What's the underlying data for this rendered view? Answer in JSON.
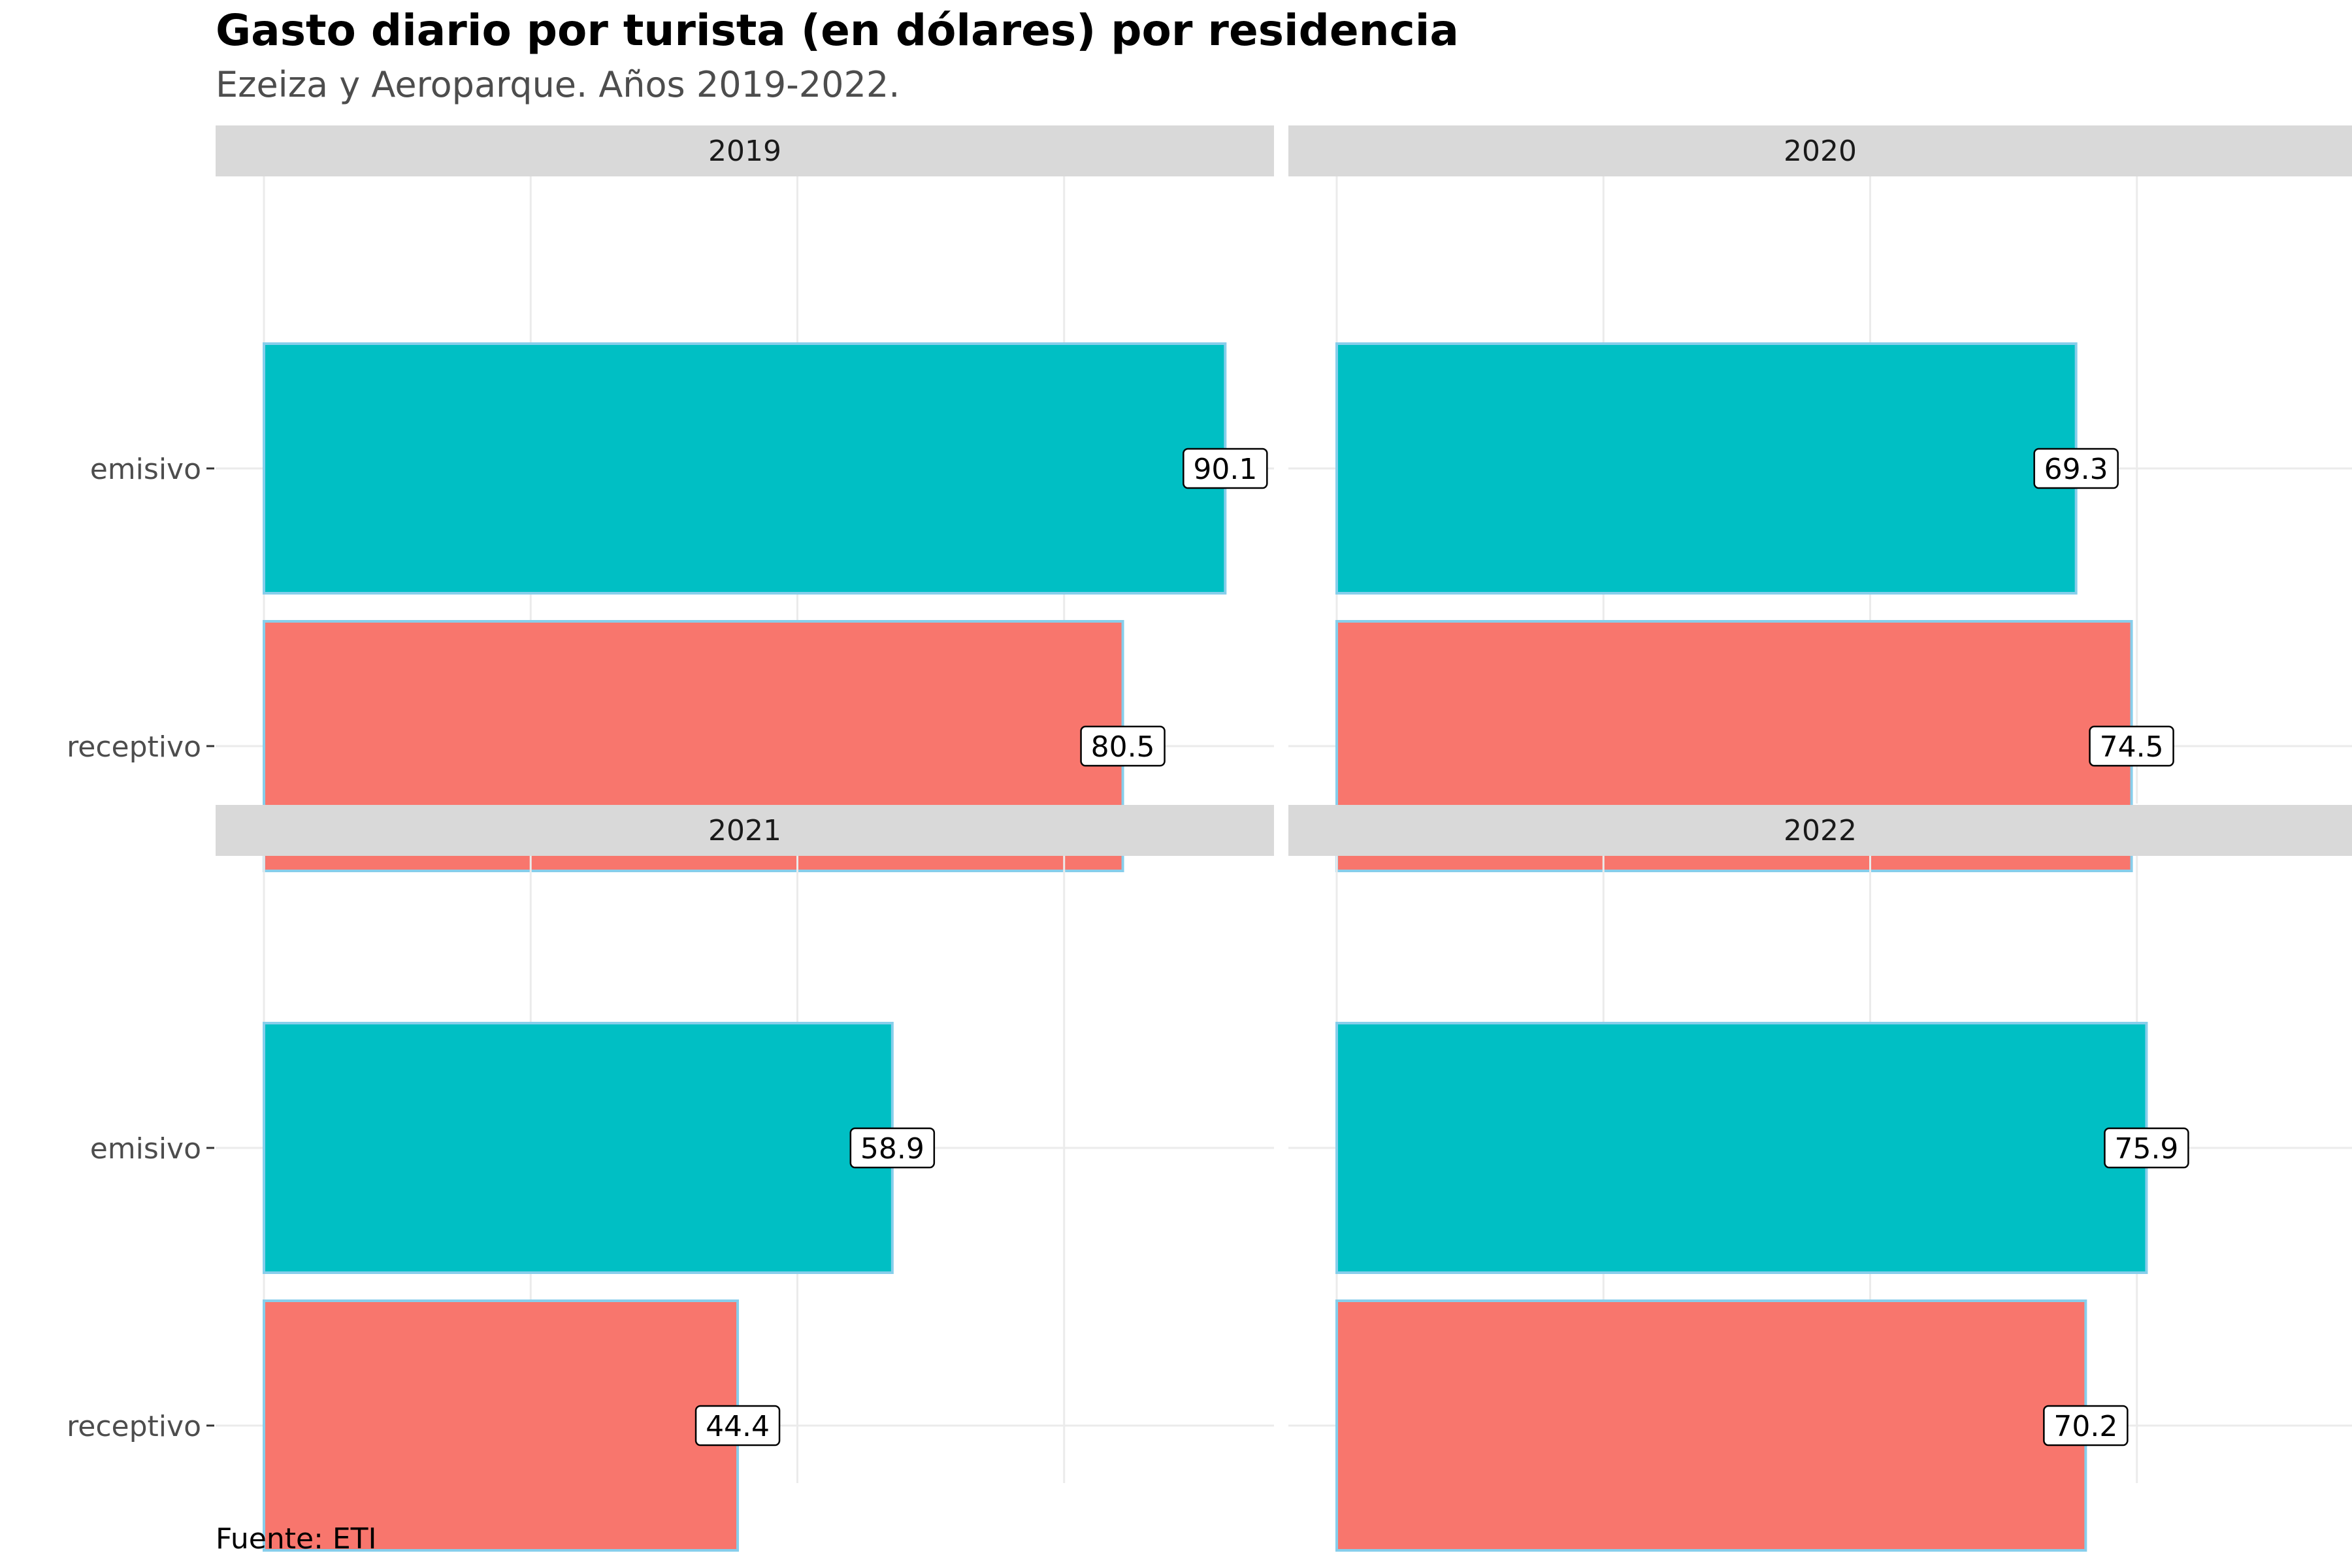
{
  "title": "Gasto diario por turista (en dólares) por residencia",
  "subtitle": "Ezeiza y Aeroparque. Años 2019-2022.",
  "caption": "Fuente: ETI",
  "colors": {
    "emisivo": "#00BFC4",
    "receptivo": "#F8766D",
    "bar_outline": "#87CEEB",
    "strip_bg": "#D9D9D9",
    "grid": "#EBEBEB"
  },
  "chart_data": {
    "type": "bar",
    "orientation": "horizontal",
    "categories": [
      "emisivo",
      "receptivo"
    ],
    "facets": [
      {
        "label": "2019",
        "values": [
          90.1,
          80.5
        ],
        "labels": [
          "90.1",
          "80.5"
        ]
      },
      {
        "label": "2020",
        "values": [
          69.3,
          74.5
        ],
        "labels": [
          "69.3",
          "74.5"
        ]
      },
      {
        "label": "2021",
        "values": [
          58.9,
          44.4
        ],
        "labels": [
          "58.9",
          "44.4"
        ]
      },
      {
        "label": "2022",
        "values": [
          75.9,
          70.2
        ],
        "labels": [
          "75.9",
          "70.2"
        ]
      }
    ],
    "xlim": [
      0,
      93.5
    ],
    "x_gridlines": [
      0,
      25,
      50,
      75
    ],
    "x_tick_labels_shown": false,
    "xlabel": "",
    "ylabel": "",
    "grid": true,
    "legend": "none"
  }
}
